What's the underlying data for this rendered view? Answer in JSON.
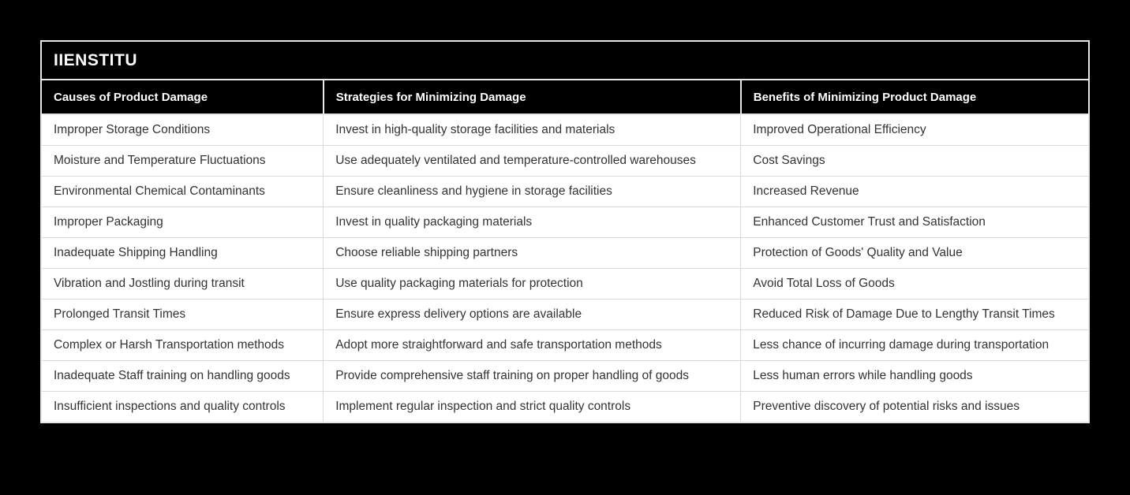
{
  "page": {
    "background_color": "#000000"
  },
  "card": {
    "brand": "IIENSTITU",
    "colors": {
      "header_bg": "#000000",
      "header_text": "#ffffff",
      "row_bg": "#ffffff",
      "row_text": "#333333",
      "outer_border": "#e7e7e7",
      "row_divider": "#d9d9d9"
    }
  },
  "table": {
    "columns": [
      "Causes of Product Damage",
      "Strategies for Minimizing Damage",
      "Benefits of Minimizing Product Damage"
    ],
    "rows": [
      [
        "Improper Storage Conditions",
        "Invest in high-quality storage facilities and materials",
        "Improved Operational Efficiency"
      ],
      [
        "Moisture and Temperature Fluctuations",
        "Use adequately ventilated and temperature-controlled warehouses",
        "Cost Savings"
      ],
      [
        "Environmental Chemical Contaminants",
        "Ensure cleanliness and hygiene in storage facilities",
        "Increased Revenue"
      ],
      [
        "Improper Packaging",
        "Invest in quality packaging materials",
        "Enhanced Customer Trust and Satisfaction"
      ],
      [
        "Inadequate Shipping Handling",
        "Choose reliable shipping partners",
        "Protection of Goods' Quality and Value"
      ],
      [
        "Vibration and Jostling during transit",
        "Use quality packaging materials for protection",
        "Avoid Total Loss of Goods"
      ],
      [
        "Prolonged Transit Times",
        "Ensure express delivery options are available",
        "Reduced Risk of Damage Due to Lengthy Transit Times"
      ],
      [
        "Complex or Harsh Transportation methods",
        "Adopt more straightforward and safe transportation methods",
        "Less chance of incurring damage during transportation"
      ],
      [
        "Inadequate Staff training on handling goods",
        "Provide comprehensive staff training on proper handling of goods",
        "Less human errors while handling goods"
      ],
      [
        "Insufficient inspections and quality controls",
        "Implement regular inspection and strict quality controls",
        "Preventive discovery of potential risks and issues"
      ]
    ]
  }
}
